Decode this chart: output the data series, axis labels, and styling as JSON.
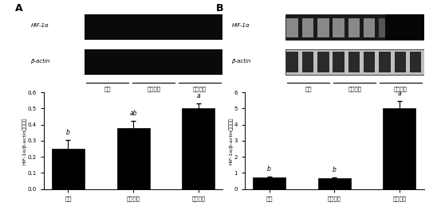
{
  "panel_A": {
    "categories": [
      "正常",
      "化学缺氧",
      "物理缺氧"
    ],
    "values": [
      0.25,
      0.38,
      0.5
    ],
    "errors": [
      0.055,
      0.042,
      0.03
    ],
    "ylim": [
      0,
      0.6
    ],
    "yticks": [
      0,
      0.1,
      0.2,
      0.3,
      0.4,
      0.5,
      0.6
    ],
    "ylabel": "HIF-1α/β-actin相对比値",
    "letters": [
      "b",
      "ab",
      "a"
    ],
    "blot_labels": [
      "HIF-1α",
      "β-actin"
    ],
    "blot_group_labels": [
      "正常",
      "化学缺氧",
      "物理缺氧"
    ],
    "panel_label": "A"
  },
  "panel_B": {
    "categories": [
      "正常",
      "化学缺氧",
      "物理缺氧"
    ],
    "values": [
      0.7,
      0.65,
      5.0
    ],
    "errors": [
      0.08,
      0.07,
      0.45
    ],
    "ylim": [
      0,
      6
    ],
    "yticks": [
      0,
      1,
      2,
      3,
      4,
      5,
      6
    ],
    "ylabel": "HIF-1α/β-actin相对比値",
    "letters": [
      "b",
      "b",
      "a"
    ],
    "blot_labels": [
      "HIF-1α",
      "β-actin"
    ],
    "blot_group_labels": [
      "正常",
      "化学缺氧",
      "物理缺氧"
    ],
    "panel_label": "B"
  },
  "bar_color": "#000000",
  "bar_width": 0.5,
  "font_size": 6
}
